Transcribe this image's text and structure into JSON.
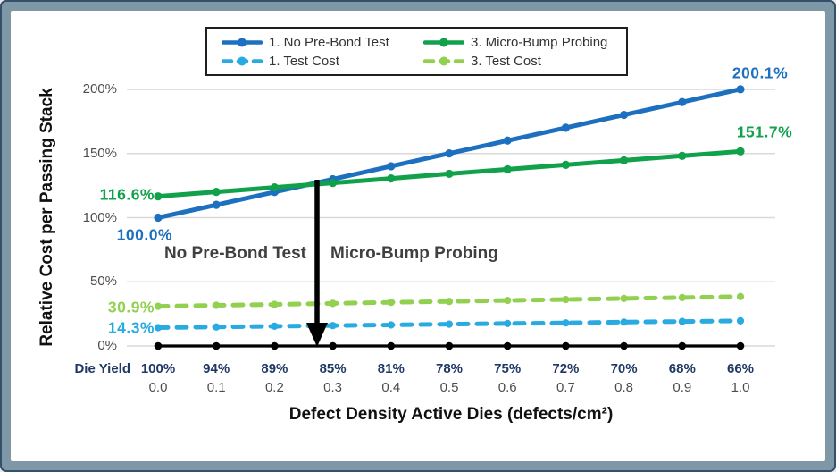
{
  "chart_data": {
    "type": "line",
    "title": "",
    "ylabel": "Relative Cost per Passing Stack",
    "xlabel": "Defect Density Active Dies (defects/cm²)",
    "x": [
      0.0,
      0.1,
      0.2,
      0.3,
      0.4,
      0.5,
      0.6,
      0.7,
      0.8,
      0.9,
      1.0
    ],
    "x_tick_labels": [
      "0.0",
      "0.1",
      "0.2",
      "0.3",
      "0.4",
      "0.5",
      "0.6",
      "0.7",
      "0.8",
      "0.9",
      "1.0"
    ],
    "die_yield": {
      "label": "Die Yield",
      "values": [
        "100%",
        "94%",
        "89%",
        "85%",
        "81%",
        "78%",
        "75%",
        "72%",
        "70%",
        "68%",
        "66%"
      ]
    },
    "y_ticks": {
      "values": [
        0,
        50,
        100,
        150,
        200
      ],
      "labels": [
        "0%",
        "50%",
        "100%",
        "150%",
        "200%"
      ]
    },
    "ylim": [
      0,
      210
    ],
    "grid": true,
    "legend_position": "top",
    "series": [
      {
        "name": "1. No Pre-Bond Test",
        "color": "#1D70C0",
        "style": "solid",
        "values": [
          100.0,
          110.0,
          120.0,
          130.0,
          140.1,
          150.1,
          160.1,
          170.1,
          180.1,
          190.1,
          200.1
        ],
        "start_label": "100.0%",
        "end_label": "200.1%"
      },
      {
        "name": "3. Micro-Bump Probing",
        "color": "#10A14A",
        "style": "solid",
        "values": [
          116.6,
          120.1,
          123.6,
          127.1,
          130.6,
          134.2,
          137.7,
          141.2,
          144.7,
          148.2,
          151.7
        ],
        "start_label": "116.6%",
        "end_label": "151.7%"
      },
      {
        "name": "1. Test Cost",
        "color": "#29ABE2",
        "style": "dashed",
        "values": [
          14.3,
          14.8,
          15.4,
          15.9,
          16.4,
          17.0,
          17.5,
          18.0,
          18.6,
          19.1,
          19.6
        ],
        "start_label": "14.3%",
        "end_label": ""
      },
      {
        "name": "3. Test Cost",
        "color": "#92D050",
        "style": "dashed",
        "values": [
          30.9,
          31.7,
          32.4,
          33.2,
          34.0,
          34.7,
          35.5,
          36.2,
          37.0,
          37.7,
          38.5
        ],
        "start_label": "30.9%",
        "end_label": ""
      }
    ],
    "annotations": {
      "left_label": "No Pre-Bond Test",
      "right_label": "Micro-Bump Probing",
      "arrow": "down-arrow-at-crossover"
    }
  },
  "colors": {
    "frame_border": "#7E98A8",
    "frame_border_edge": "#35506B",
    "background": "#FFFFFF",
    "gridline": "#D9D9D9",
    "axis": "#000000",
    "tick_text": "#4D4D4D",
    "die_yield_text": "#1F3864",
    "annotation_text": "#404040"
  }
}
